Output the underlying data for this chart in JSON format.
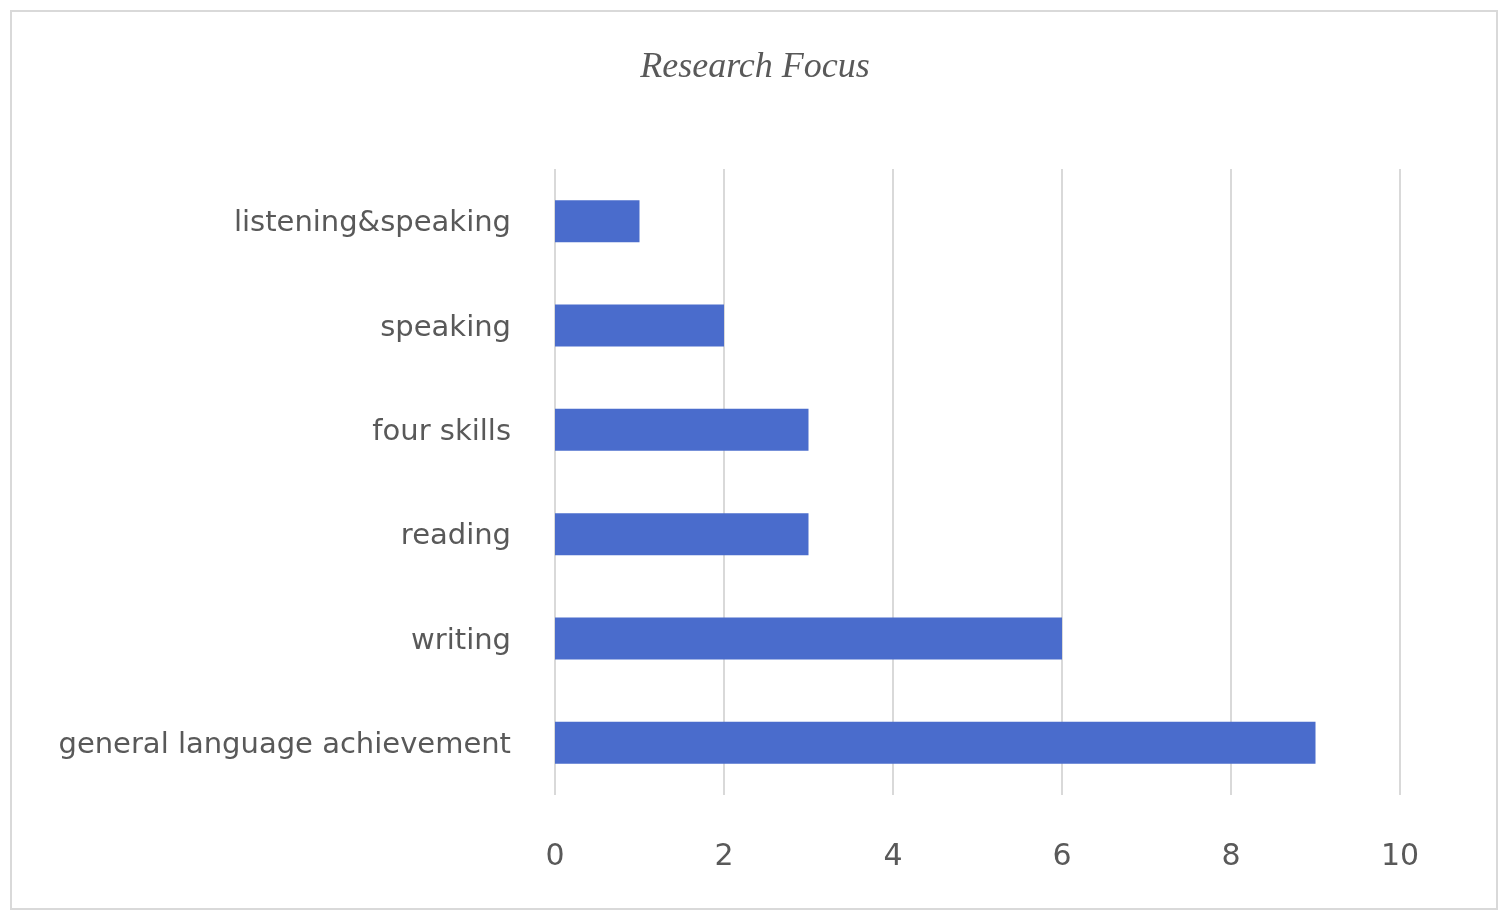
{
  "chart_data": {
    "type": "bar",
    "orientation": "horizontal",
    "title": "Research Focus",
    "categories": [
      "listening&speaking",
      "speaking",
      "four skills",
      "reading",
      "writing",
      "general language achievement"
    ],
    "values": [
      1,
      2,
      3,
      3,
      6,
      9
    ],
    "color": "#4a6ccc",
    "xlim": [
      0,
      10
    ],
    "xticks": [
      0,
      2,
      4,
      6,
      8,
      10
    ],
    "grid": "x"
  }
}
